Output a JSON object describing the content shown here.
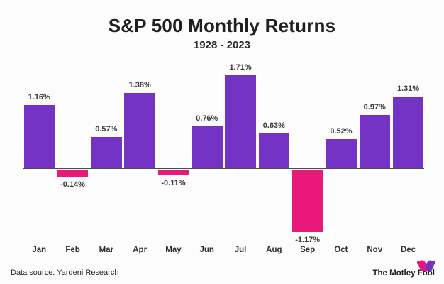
{
  "header": {
    "title": "S&P 500 Monthly Returns",
    "subtitle": "1928 - 2023"
  },
  "chart_data": {
    "type": "bar",
    "title": "S&P 500 Monthly Returns",
    "subtitle": "1928 - 2023",
    "categories": [
      "Jan",
      "Feb",
      "Mar",
      "Apr",
      "May",
      "Jun",
      "Jul",
      "Aug",
      "Sep",
      "Oct",
      "Nov",
      "Dec"
    ],
    "values": [
      1.16,
      -0.14,
      0.57,
      1.38,
      -0.11,
      0.76,
      1.71,
      0.63,
      -1.17,
      0.52,
      0.97,
      1.31
    ],
    "value_labels": [
      "1.16%",
      "-0.14%",
      "0.57%",
      "1.38%",
      "-0.11%",
      "0.76%",
      "1.71%",
      "0.63%",
      "-1.17%",
      "0.52%",
      "0.97%",
      "1.31%"
    ],
    "xlabel": "",
    "ylabel": "",
    "ylim": [
      -1.4,
      1.9
    ],
    "grid": false,
    "legend": false,
    "positive_color": "#7533C5",
    "negative_color": "#EA1878",
    "axis_color": "#4D4D4D"
  },
  "footer": {
    "source": "Data source: Yardeni Research",
    "brand": "The Motley Fool"
  },
  "colors": {
    "background": "#FCFCFC",
    "title_text": "#202020",
    "label_text": "#3A3A3A",
    "brand_pink": "#EC127F",
    "brand_purple": "#7A2FC0"
  }
}
